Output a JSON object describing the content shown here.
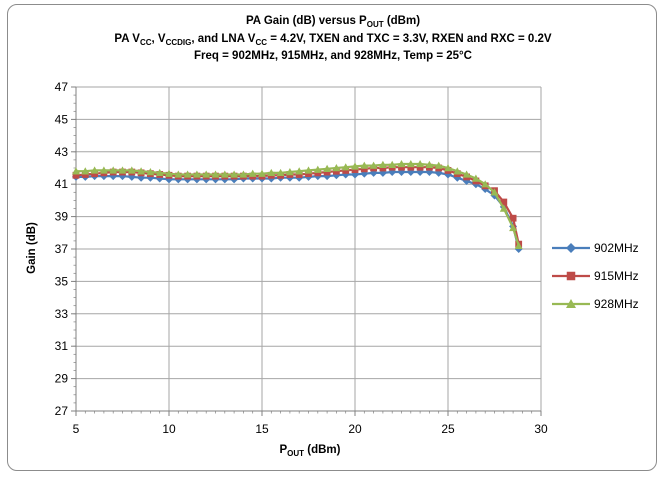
{
  "chart_data": {
    "type": "line",
    "title": {
      "line1": {
        "main": "PA Gain (dB) versus P",
        "sub": "OUT",
        "tail": " (dBm)"
      },
      "line2": {
        "p1": "PA V",
        "s1": "CC",
        "p2": ", V",
        "s2": "CCDIG",
        "p3": ", and LNA V",
        "s3": "CC",
        "p4": "  = 4.2V, TXEN and TXC = 3.3V, RXEN and RXC = 0.2V"
      },
      "line3": "Freq = 902MHz, 915MHz, and 928MHz, Temp = 25°C"
    },
    "xlabel": {
      "main": "P",
      "sub": "OUT",
      "tail": " (dBm)"
    },
    "ylabel": "Gain (dB)",
    "xlim": [
      5,
      30
    ],
    "ylim": [
      27,
      47
    ],
    "xticks": [
      "5",
      "10",
      "15",
      "20",
      "25",
      "30"
    ],
    "yticks": [
      "27",
      "29",
      "31",
      "33",
      "35",
      "37",
      "39",
      "41",
      "43",
      "45",
      "47"
    ],
    "grid": true,
    "legend_position": "right",
    "series": [
      {
        "name": "902MHz",
        "color": "#4a7ebb",
        "marker": "diamond",
        "points": [
          [
            5,
            41.45
          ],
          [
            5.5,
            41.45
          ],
          [
            6,
            41.5
          ],
          [
            6.5,
            41.5
          ],
          [
            7,
            41.5
          ],
          [
            7.5,
            41.5
          ],
          [
            8,
            41.45
          ],
          [
            8.5,
            41.4
          ],
          [
            9,
            41.4
          ],
          [
            9.5,
            41.35
          ],
          [
            10,
            41.3
          ],
          [
            10.5,
            41.3
          ],
          [
            11,
            41.3
          ],
          [
            11.5,
            41.3
          ],
          [
            12,
            41.3
          ],
          [
            12.5,
            41.3
          ],
          [
            13,
            41.3
          ],
          [
            13.5,
            41.3
          ],
          [
            14,
            41.35
          ],
          [
            14.5,
            41.35
          ],
          [
            15,
            41.35
          ],
          [
            15.5,
            41.35
          ],
          [
            16,
            41.4
          ],
          [
            16.5,
            41.4
          ],
          [
            17,
            41.4
          ],
          [
            17.5,
            41.45
          ],
          [
            18,
            41.5
          ],
          [
            18.5,
            41.5
          ],
          [
            19,
            41.55
          ],
          [
            19.5,
            41.6
          ],
          [
            20,
            41.6
          ],
          [
            20.5,
            41.65
          ],
          [
            21,
            41.7
          ],
          [
            21.5,
            41.7
          ],
          [
            22,
            41.75
          ],
          [
            22.5,
            41.75
          ],
          [
            23,
            41.75
          ],
          [
            23.5,
            41.75
          ],
          [
            24,
            41.75
          ],
          [
            24.5,
            41.7
          ],
          [
            25,
            41.6
          ],
          [
            25.5,
            41.4
          ],
          [
            26,
            41.2
          ],
          [
            26.5,
            41.0
          ],
          [
            27,
            40.7
          ],
          [
            27.5,
            40.3
          ],
          [
            28,
            39.6
          ],
          [
            28.5,
            38.4
          ],
          [
            28.8,
            37.0
          ]
        ]
      },
      {
        "name": "915MHz",
        "color": "#be4b48",
        "marker": "square",
        "points": [
          [
            5,
            41.55
          ],
          [
            5.5,
            41.6
          ],
          [
            6,
            41.65
          ],
          [
            6.5,
            41.7
          ],
          [
            7,
            41.75
          ],
          [
            7.5,
            41.75
          ],
          [
            8,
            41.75
          ],
          [
            8.5,
            41.7
          ],
          [
            9,
            41.65
          ],
          [
            9.5,
            41.6
          ],
          [
            10,
            41.55
          ],
          [
            10.5,
            41.5
          ],
          [
            11,
            41.5
          ],
          [
            11.5,
            41.5
          ],
          [
            12,
            41.5
          ],
          [
            12.5,
            41.5
          ],
          [
            13,
            41.5
          ],
          [
            13.5,
            41.5
          ],
          [
            14,
            41.5
          ],
          [
            14.5,
            41.5
          ],
          [
            15,
            41.5
          ],
          [
            15.5,
            41.55
          ],
          [
            16,
            41.55
          ],
          [
            16.5,
            41.6
          ],
          [
            17,
            41.6
          ],
          [
            17.5,
            41.65
          ],
          [
            18,
            41.7
          ],
          [
            18.5,
            41.75
          ],
          [
            19,
            41.8
          ],
          [
            19.5,
            41.85
          ],
          [
            20,
            41.9
          ],
          [
            20.5,
            41.95
          ],
          [
            21,
            42.0
          ],
          [
            21.5,
            42.0
          ],
          [
            22,
            42.05
          ],
          [
            22.5,
            42.05
          ],
          [
            23,
            42.05
          ],
          [
            23.5,
            42.05
          ],
          [
            24,
            42.05
          ],
          [
            24.5,
            42.0
          ],
          [
            25,
            41.85
          ],
          [
            25.5,
            41.65
          ],
          [
            26,
            41.45
          ],
          [
            26.5,
            41.2
          ],
          [
            27,
            40.9
          ],
          [
            27.5,
            40.6
          ],
          [
            28,
            39.9
          ],
          [
            28.5,
            38.9
          ],
          [
            28.8,
            37.3
          ]
        ]
      },
      {
        "name": "928MHz",
        "color": "#98b954",
        "marker": "triangle",
        "points": [
          [
            5,
            41.8
          ],
          [
            5.5,
            41.8
          ],
          [
            6,
            41.85
          ],
          [
            6.5,
            41.85
          ],
          [
            7,
            41.85
          ],
          [
            7.5,
            41.85
          ],
          [
            8,
            41.85
          ],
          [
            8.5,
            41.8
          ],
          [
            9,
            41.75
          ],
          [
            9.5,
            41.7
          ],
          [
            10,
            41.65
          ],
          [
            10.5,
            41.6
          ],
          [
            11,
            41.6
          ],
          [
            11.5,
            41.6
          ],
          [
            12,
            41.6
          ],
          [
            12.5,
            41.6
          ],
          [
            13,
            41.6
          ],
          [
            13.5,
            41.6
          ],
          [
            14,
            41.6
          ],
          [
            14.5,
            41.65
          ],
          [
            15,
            41.65
          ],
          [
            15.5,
            41.7
          ],
          [
            16,
            41.7
          ],
          [
            16.5,
            41.75
          ],
          [
            17,
            41.8
          ],
          [
            17.5,
            41.85
          ],
          [
            18,
            41.9
          ],
          [
            18.5,
            41.95
          ],
          [
            19,
            42.0
          ],
          [
            19.5,
            42.05
          ],
          [
            20,
            42.1
          ],
          [
            20.5,
            42.15
          ],
          [
            21,
            42.15
          ],
          [
            21.5,
            42.2
          ],
          [
            22,
            42.2
          ],
          [
            22.5,
            42.25
          ],
          [
            23,
            42.25
          ],
          [
            23.5,
            42.25
          ],
          [
            24,
            42.2
          ],
          [
            24.5,
            42.15
          ],
          [
            25,
            42.0
          ],
          [
            25.5,
            41.8
          ],
          [
            26,
            41.6
          ],
          [
            26.5,
            41.35
          ],
          [
            27,
            41.0
          ],
          [
            27.5,
            40.5
          ],
          [
            28,
            39.5
          ],
          [
            28.5,
            38.3
          ],
          [
            28.8,
            37.2
          ]
        ]
      }
    ]
  }
}
